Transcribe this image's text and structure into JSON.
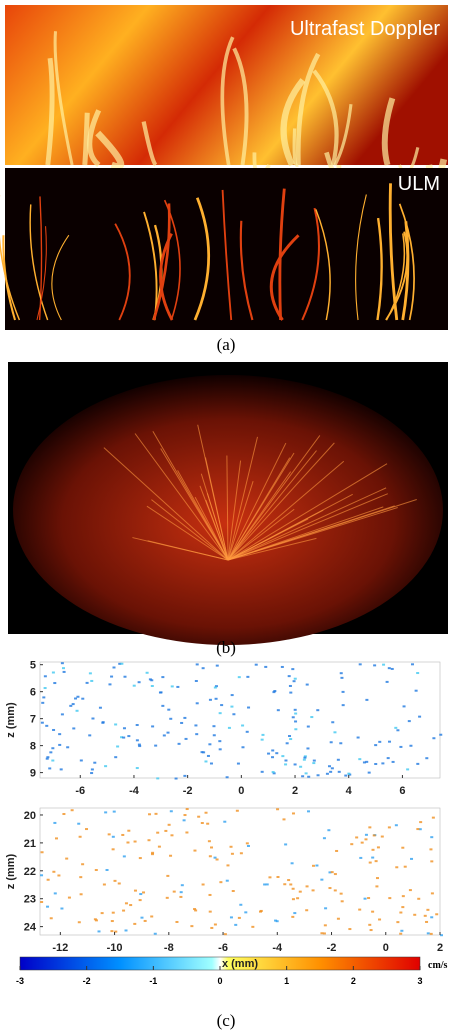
{
  "panel_a": {
    "top_label": "Ultrafast Doppler",
    "bottom_label": "ULM",
    "caption": "(a)"
  },
  "panel_b": {
    "caption": "(b)"
  },
  "panel_c": {
    "caption": "(c)",
    "plots": [
      {
        "ylabel": "z (mm)",
        "xlim": [
          -7.5,
          7.4
        ],
        "xticks": [
          -6,
          -4,
          -2,
          0,
          2,
          4,
          6
        ],
        "ylim": [
          4.9,
          9.2
        ],
        "yticks": [
          5,
          6,
          7,
          8,
          9
        ]
      },
      {
        "ylabel": "z (mm)",
        "xlabel": "x (mm)",
        "xlim": [
          -12.75,
          2
        ],
        "xticks": [
          -12,
          -10,
          -8,
          -6,
          -4,
          -2,
          0,
          2
        ],
        "ylim": [
          19.75,
          24.3
        ],
        "yticks": [
          20,
          21,
          22,
          23,
          24
        ]
      }
    ],
    "colorbar": {
      "lim": [
        -3,
        3
      ],
      "ticks": [
        -3,
        -2,
        -1,
        0,
        1,
        2,
        3
      ],
      "unit": "cm/s"
    }
  }
}
